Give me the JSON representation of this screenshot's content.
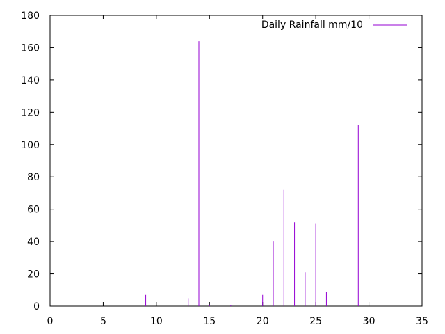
{
  "chart_data": {
    "type": "bar",
    "title": "",
    "xlabel": "",
    "ylabel": "",
    "xlim": [
      0,
      35
    ],
    "ylim": [
      0,
      180
    ],
    "xticks": [
      0,
      5,
      10,
      15,
      20,
      25,
      30,
      35
    ],
    "yticks": [
      0,
      20,
      40,
      60,
      80,
      100,
      120,
      140,
      160,
      180
    ],
    "grid": false,
    "legend_position": "top-right",
    "series": [
      {
        "name": "Daily Rainfall mm/10",
        "color": "#9400d3",
        "style": "impulses",
        "x": [
          9,
          13,
          14,
          15,
          17,
          20,
          21,
          22,
          23,
          24,
          25,
          26,
          29
        ],
        "y": [
          7,
          5,
          164,
          1,
          0.5,
          7,
          40,
          72,
          52,
          21,
          51,
          9,
          112
        ]
      }
    ]
  }
}
